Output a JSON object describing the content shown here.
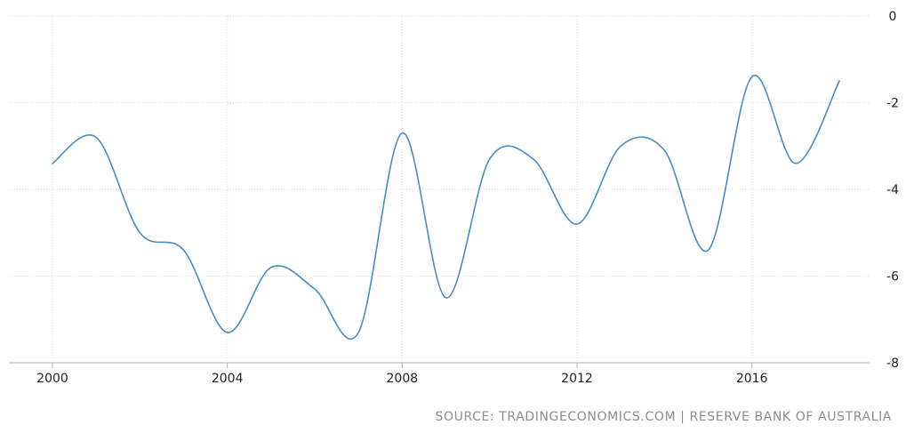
{
  "chart_data": {
    "type": "line",
    "x": [
      2000,
      2001,
      2002,
      2003,
      2004,
      2005,
      2006,
      2007,
      2008,
      2009,
      2010,
      2011,
      2012,
      2013,
      2014,
      2015,
      2016,
      2017,
      2018
    ],
    "series": [
      {
        "values": [
          -3.4,
          -2.8,
          -5.0,
          -5.4,
          -7.3,
          -5.8,
          -6.3,
          -7.3,
          -2.7,
          -6.5,
          -3.3,
          -3.3,
          -4.8,
          -3.0,
          -3.1,
          -5.4,
          -1.4,
          -3.4,
          -1.5
        ]
      }
    ],
    "xticks": [
      "2000",
      "2004",
      "2008",
      "2012",
      "2016"
    ],
    "yticks": [
      "0",
      "-2",
      "-4",
      "-6",
      "-8"
    ],
    "xlim": [
      2000,
      2018
    ],
    "ylim": [
      -8,
      0
    ],
    "grid": true,
    "line_color": "#4a8ac4",
    "grid_color": "#d9d9d9"
  },
  "source_text": "SOURCE: TRADINGECONOMICS.COM | RESERVE BANK OF AUSTRALIA"
}
